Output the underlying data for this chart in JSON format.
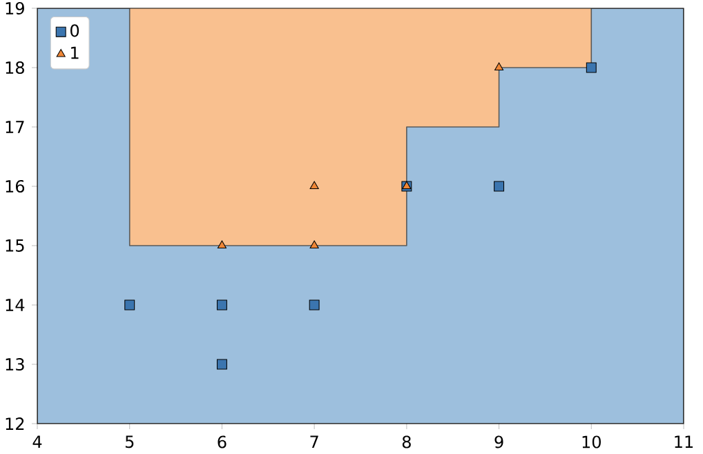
{
  "chart_data": {
    "type": "scatter",
    "xlim": [
      4,
      11
    ],
    "ylim": [
      12,
      19
    ],
    "xticks": [
      4,
      5,
      6,
      7,
      8,
      9,
      10,
      11
    ],
    "yticks": [
      12,
      13,
      14,
      15,
      16,
      17,
      18,
      19
    ],
    "grid": false,
    "legend": "top left",
    "series": [
      {
        "type": "area",
        "color": "#9dbfdd",
        "x": [
          4,
          5,
          5,
          8,
          8,
          9,
          9,
          10,
          10,
          11
        ],
        "values": [
          19,
          19,
          15,
          15,
          17,
          17,
          18,
          18,
          19,
          19
        ]
      },
      {
        "name": "0",
        "marker": "square",
        "color": "#3b75af",
        "x": [
          5,
          6,
          6,
          7,
          8,
          9,
          10
        ],
        "values": [
          14,
          14,
          13,
          14,
          16,
          16,
          18
        ]
      },
      {
        "name": "1",
        "marker": "triangle",
        "color": "#ef8636",
        "x": [
          6,
          7,
          7,
          8,
          9
        ],
        "values": [
          15,
          15,
          16,
          16,
          18
        ]
      }
    ]
  }
}
